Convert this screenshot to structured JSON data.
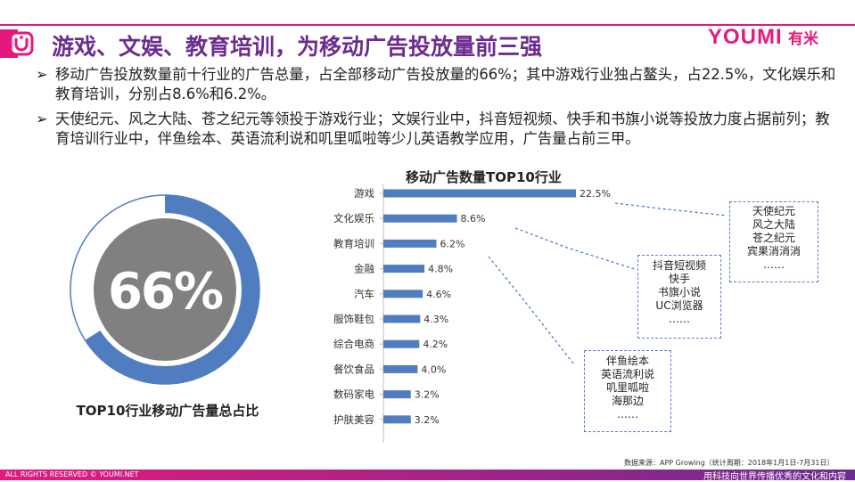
{
  "colors": {
    "accent": "#e5197d",
    "purple": "#6c2c8f",
    "bar": "#4f7dbf",
    "pie_gray": "#808080"
  },
  "header": {
    "title": "游戏、文娱、教育培训，为移动广告投放量前三强",
    "brand_text": "YOUMI",
    "brand_cn": "有米"
  },
  "bullets": [
    "移动广告投放数量前十行业的广告总量，占全部移动广告投放量的66%；其中游戏行业独占鳌头，占22.5%，文化娱乐和教育培训，分别占8.6%和6.2%。",
    "天使纪元、风之大陆、苍之纪元等领投于游戏行业；文娱行业中，抖音短视频、快手和书旗小说等投放力度占据前列；教育培训行业中，伴鱼绘本、英语流利说和叽里呱啦等少儿英语教学应用，广告量占前三甲。"
  ],
  "bullet_marker": "➢",
  "chart_data": [
    {
      "type": "pie",
      "title": "TOP10行业移动广告量总占比",
      "center_label": "66%",
      "value": 66,
      "total": 100
    },
    {
      "type": "bar",
      "orientation": "horizontal",
      "title": "移动广告数量TOP10行业",
      "categories": [
        "游戏",
        "文化娱乐",
        "教育培训",
        "金融",
        "汽车",
        "服饰鞋包",
        "综合电商",
        "餐饮食品",
        "数码家电",
        "护肤美容"
      ],
      "values": [
        22.5,
        8.6,
        6.2,
        4.8,
        4.6,
        4.3,
        4.2,
        4.0,
        3.2,
        3.2
      ],
      "value_labels": [
        "22.5%",
        "8.6%",
        "6.2%",
        "4.8%",
        "4.6%",
        "4.3%",
        "4.2%",
        "4.0%",
        "3.2%",
        "3.2%"
      ],
      "xlim": [
        0,
        22.5
      ],
      "grid": false
    }
  ],
  "callouts": [
    {
      "lines": [
        "天使纪元",
        "风之大陆",
        "苍之纪元",
        "宾果消消消",
        "……"
      ]
    },
    {
      "lines": [
        "抖音短视频",
        "快手",
        "书旗小说",
        "UC浏览器",
        "……"
      ]
    },
    {
      "lines": [
        "伴鱼绘本",
        "英语流利说",
        "叽里呱啦",
        "海那边",
        "……"
      ]
    }
  ],
  "source": "数据来源：APP Growing（统计周期：2018年1月1日-7月31日）",
  "footer": {
    "left": "ALL RIGHTS RESERVED © YOUMI.NET",
    "right": "用科技向世界传播优秀的文化和内容"
  }
}
